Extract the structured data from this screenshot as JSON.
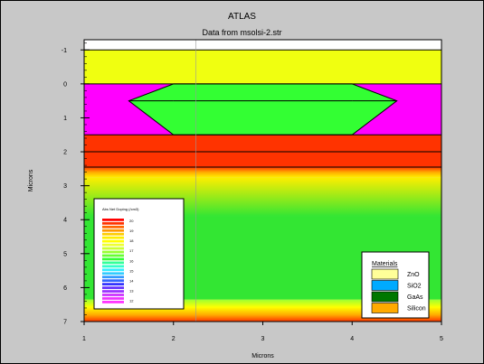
{
  "title": "ATLAS",
  "subtitle": "Data from msolsi-2.str",
  "x_axis": {
    "label": "Microns",
    "ticks": [
      "1",
      "2",
      "3",
      "4",
      "5"
    ]
  },
  "y_axis": {
    "label": "Microns",
    "ticks": [
      "-1",
      "0",
      "1",
      "2",
      "3",
      "4",
      "5",
      "6",
      "7"
    ]
  },
  "doping_legend": {
    "title": "Abs Net Doping (/cm3)",
    "labels": [
      "20",
      "19",
      "18",
      "17",
      "16",
      "15",
      "14",
      "13",
      "12"
    ]
  },
  "materials_legend": {
    "title": "Materials",
    "items": [
      {
        "name": "ZnO",
        "color": "#ffff99"
      },
      {
        "name": "SiO2",
        "color": "#00aaff"
      },
      {
        "name": "GaAs",
        "color": "#007700"
      },
      {
        "name": "Silicon",
        "color": "#ffaa00"
      }
    ]
  },
  "colors": {
    "zno_layer": "#f0ff10",
    "gaas_layer": "#ff00ff",
    "lens": "#33ff33",
    "heavy_doping": "#ff3300",
    "bulk": "#33e633",
    "plot_frame": "#000000"
  }
}
